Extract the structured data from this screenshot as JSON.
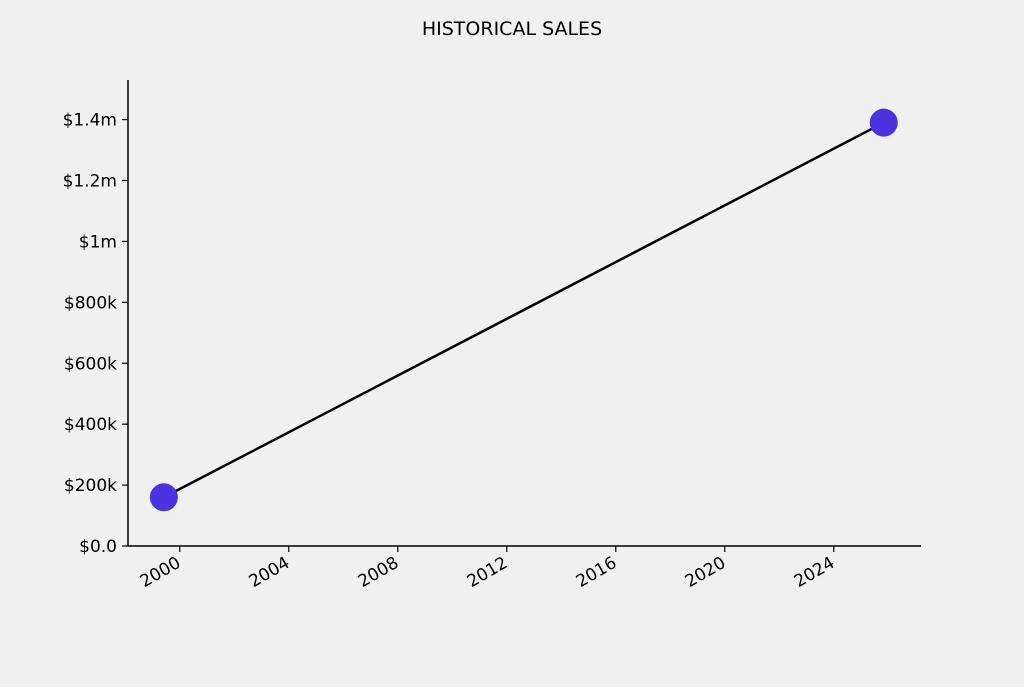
{
  "chart_data": {
    "type": "line",
    "title": "HISTORICAL SALES",
    "xlabel": "",
    "ylabel": "",
    "x": [
      "1999-06",
      "2025-11"
    ],
    "series": [
      {
        "values": [
          160000,
          1390000
        ],
        "line_color": "#000000",
        "marker_color": "#4b33e0"
      }
    ],
    "xlim": [
      1998.1,
      2027.2
    ],
    "ylim": [
      0,
      1530000
    ],
    "x_ticks": [
      2000,
      2004,
      2008,
      2012,
      2016,
      2020,
      2024
    ],
    "x_tick_labels": [
      "2000",
      "2004",
      "2008",
      "2012",
      "2016",
      "2020",
      "2024"
    ],
    "y_ticks": [
      0,
      200000,
      400000,
      600000,
      800000,
      1000000,
      1200000,
      1400000
    ],
    "y_tick_labels": [
      "$0.0",
      "$200k",
      "$400k",
      "$600k",
      "$800k",
      "$1m",
      "$1.2m",
      "$1.4m"
    ],
    "grid": false,
    "background": "#f0f0f0"
  }
}
